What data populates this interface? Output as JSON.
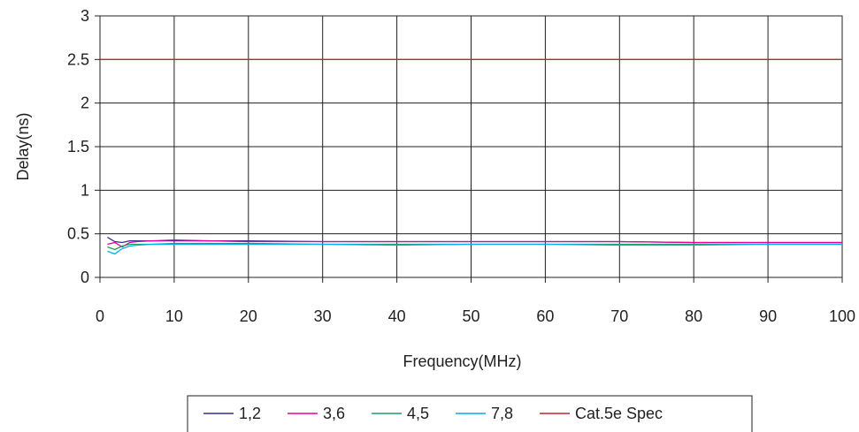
{
  "chart_data": {
    "type": "line",
    "xlabel": "Frequency(MHz)",
    "ylabel": "Delay(ns)",
    "xlim": [
      0,
      100
    ],
    "ylim": [
      0,
      3
    ],
    "x_ticks": [
      "0",
      "10",
      "20",
      "30",
      "40",
      "50",
      "60",
      "70",
      "80",
      "90",
      "100"
    ],
    "y_ticks": [
      "0",
      "0.5",
      "1",
      "1.5",
      "2",
      "2.5",
      "3"
    ],
    "grid": true,
    "legend_position": "bottom",
    "series": [
      {
        "name": "1,2",
        "color": "#2e3192",
        "x": [
          1,
          2,
          3,
          4,
          5,
          7,
          10,
          15,
          20,
          30,
          40,
          50,
          60,
          70,
          80,
          90,
          100
        ],
        "y": [
          0.46,
          0.41,
          0.4,
          0.42,
          0.42,
          0.42,
          0.42,
          0.42,
          0.42,
          0.41,
          0.41,
          0.41,
          0.41,
          0.41,
          0.4,
          0.4,
          0.4
        ]
      },
      {
        "name": "3,6",
        "color": "#e6009a",
        "x": [
          1,
          2,
          3,
          4,
          5,
          7,
          10,
          15,
          20,
          30,
          40,
          50,
          60,
          70,
          80,
          90,
          100
        ],
        "y": [
          0.38,
          0.4,
          0.35,
          0.4,
          0.41,
          0.42,
          0.43,
          0.42,
          0.41,
          0.41,
          0.41,
          0.41,
          0.41,
          0.41,
          0.4,
          0.4,
          0.4
        ]
      },
      {
        "name": "4,5",
        "color": "#1aa15f",
        "x": [
          1,
          2,
          3,
          4,
          5,
          7,
          10,
          15,
          20,
          30,
          40,
          50,
          60,
          70,
          80,
          90,
          100
        ],
        "y": [
          0.35,
          0.32,
          0.36,
          0.38,
          0.38,
          0.38,
          0.39,
          0.39,
          0.39,
          0.38,
          0.38,
          0.38,
          0.38,
          0.38,
          0.38,
          0.38,
          0.38
        ]
      },
      {
        "name": "7,8",
        "color": "#00aeef",
        "x": [
          1,
          2,
          3,
          4,
          5,
          7,
          10,
          15,
          20,
          30,
          40,
          50,
          60,
          70,
          80,
          90,
          100
        ],
        "y": [
          0.3,
          0.27,
          0.33,
          0.36,
          0.37,
          0.38,
          0.38,
          0.38,
          0.38,
          0.38,
          0.37,
          0.38,
          0.38,
          0.37,
          0.37,
          0.38,
          0.38
        ]
      },
      {
        "name": "Cat.5e Spec",
        "color": "#c1272d",
        "x": [
          0,
          100
        ],
        "y": [
          2.5,
          2.5
        ]
      }
    ]
  }
}
